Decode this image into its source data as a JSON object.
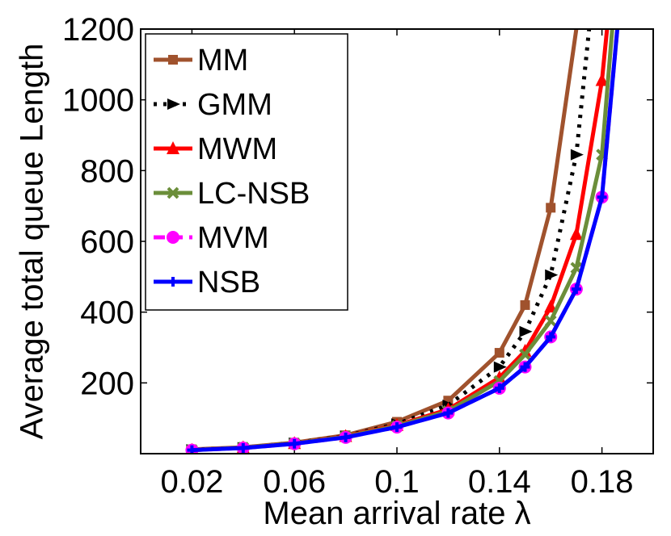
{
  "chart_data": {
    "type": "line",
    "xlabel": "Mean arrival rate λ",
    "ylabel": "Average total queue Length",
    "xlim": [
      0.0,
      0.2
    ],
    "ylim": [
      0,
      1200
    ],
    "xticks": [
      0.02,
      0.06,
      0.1,
      0.14,
      0.18
    ],
    "xtick_labels": [
      "0.02",
      "0.06",
      "0.1",
      "0.14",
      "0.18"
    ],
    "yticks": [
      200,
      400,
      600,
      800,
      1000,
      1200
    ],
    "ytick_labels": [
      "200",
      "400",
      "600",
      "800",
      "1000",
      "1200"
    ],
    "grid": false,
    "legend_position": "top-left",
    "series": [
      {
        "name": "MM",
        "color": "#a0522d",
        "dash": "solid",
        "marker": "square",
        "x": [
          0.02,
          0.04,
          0.06,
          0.08,
          0.1,
          0.12,
          0.14,
          0.15,
          0.16,
          0.17
        ],
        "y": [
          12,
          18,
          31,
          52,
          90,
          150,
          285,
          420,
          695,
          1200
        ]
      },
      {
        "name": "GMM",
        "color": "#000000",
        "dash": "dotted",
        "marker": "triangle-right",
        "x": [
          0.02,
          0.04,
          0.06,
          0.08,
          0.1,
          0.12,
          0.14,
          0.15,
          0.16,
          0.17,
          0.175
        ],
        "y": [
          11,
          17,
          30,
          50,
          84,
          137,
          245,
          345,
          505,
          845,
          1200
        ]
      },
      {
        "name": "MWM",
        "color": "#ff0000",
        "dash": "solid",
        "marker": "triangle-up",
        "x": [
          0.02,
          0.04,
          0.06,
          0.08,
          0.1,
          0.12,
          0.14,
          0.15,
          0.16,
          0.17,
          0.18,
          0.182
        ],
        "y": [
          10,
          17,
          29,
          49,
          80,
          125,
          215,
          290,
          415,
          620,
          1055,
          1200
        ]
      },
      {
        "name": "LC-NSB",
        "color": "#6b8e3a",
        "dash": "solid",
        "marker": "x",
        "x": [
          0.02,
          0.04,
          0.06,
          0.08,
          0.1,
          0.12,
          0.14,
          0.15,
          0.16,
          0.17,
          0.18,
          0.184
        ],
        "y": [
          10,
          17,
          29,
          48,
          78,
          120,
          205,
          280,
          375,
          525,
          845,
          1200
        ]
      },
      {
        "name": "MVM",
        "color": "#ff00ff",
        "dash": "dashed",
        "marker": "circle",
        "x": [
          0.02,
          0.04,
          0.06,
          0.08,
          0.1,
          0.12,
          0.14,
          0.15,
          0.16,
          0.17,
          0.18,
          0.186
        ],
        "y": [
          10,
          16,
          28,
          46,
          75,
          115,
          185,
          245,
          330,
          465,
          725,
          1200
        ]
      },
      {
        "name": "NSB",
        "color": "#0000ff",
        "dash": "solid",
        "marker": "plus",
        "x": [
          0.02,
          0.04,
          0.06,
          0.08,
          0.1,
          0.12,
          0.14,
          0.15,
          0.16,
          0.17,
          0.18,
          0.186
        ],
        "y": [
          10,
          16,
          28,
          46,
          75,
          115,
          185,
          245,
          330,
          465,
          725,
          1200
        ]
      }
    ]
  }
}
